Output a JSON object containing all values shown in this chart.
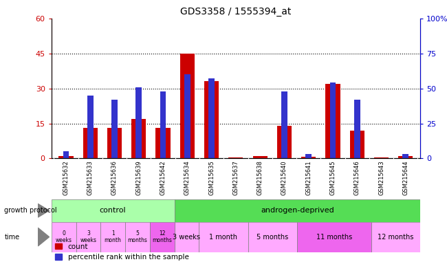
{
  "title": "GDS3358 / 1555394_at",
  "samples": [
    "GSM215632",
    "GSM215633",
    "GSM215636",
    "GSM215639",
    "GSM215642",
    "GSM215634",
    "GSM215635",
    "GSM215637",
    "GSM215638",
    "GSM215640",
    "GSM215641",
    "GSM215645",
    "GSM215646",
    "GSM215643",
    "GSM215644"
  ],
  "count": [
    1,
    13,
    13,
    17,
    13,
    45,
    33,
    0.5,
    1,
    14,
    0.8,
    32,
    12,
    0.5,
    1
  ],
  "percentile": [
    5,
    45,
    42,
    51,
    48,
    60,
    57,
    0,
    0,
    48,
    3,
    54,
    42,
    0,
    3
  ],
  "ylim_left": [
    0,
    60
  ],
  "ylim_right": [
    0,
    100
  ],
  "yticks_left": [
    0,
    15,
    30,
    45,
    60
  ],
  "yticks_right": [
    0,
    25,
    50,
    75,
    100
  ],
  "bar_color_red": "#cc0000",
  "bar_color_blue": "#3333cc",
  "dotted_lines": [
    15,
    30,
    45
  ],
  "growth_protocol_label": "growth protocol",
  "time_label": "time",
  "control_label": "control",
  "androgen_label": "androgen-deprived",
  "control_color": "#aaffaa",
  "androgen_color": "#55dd55",
  "time_color_light": "#ff99ff",
  "time_color_dark": "#dd55dd",
  "time_labels_control": [
    "0\nweeks",
    "3\nweeks",
    "1\nmonth",
    "5\nmonths",
    "12\nmonths"
  ],
  "time_colors_control": [
    "#ffaaff",
    "#ffaaff",
    "#ffaaff",
    "#ffaaff",
    "#ee66ee"
  ],
  "androgen_groups": [
    {
      "label": "3 weeks",
      "count": 1,
      "color": "#ffaaff"
    },
    {
      "label": "1 month",
      "count": 2,
      "color": "#ffaaff"
    },
    {
      "label": "5 months",
      "count": 2,
      "color": "#ffaaff"
    },
    {
      "label": "11 months",
      "count": 3,
      "color": "#ee66ee"
    },
    {
      "label": "12 months",
      "count": 2,
      "color": "#ffaaff"
    }
  ],
  "n_control": 5,
  "legend_count": "count",
  "legend_percentile": "percentile rank within the sample",
  "bg_color": "#ffffff",
  "xticklabel_bg": "#dddddd",
  "tick_color_left": "#cc0000",
  "tick_color_right": "#0000cc"
}
